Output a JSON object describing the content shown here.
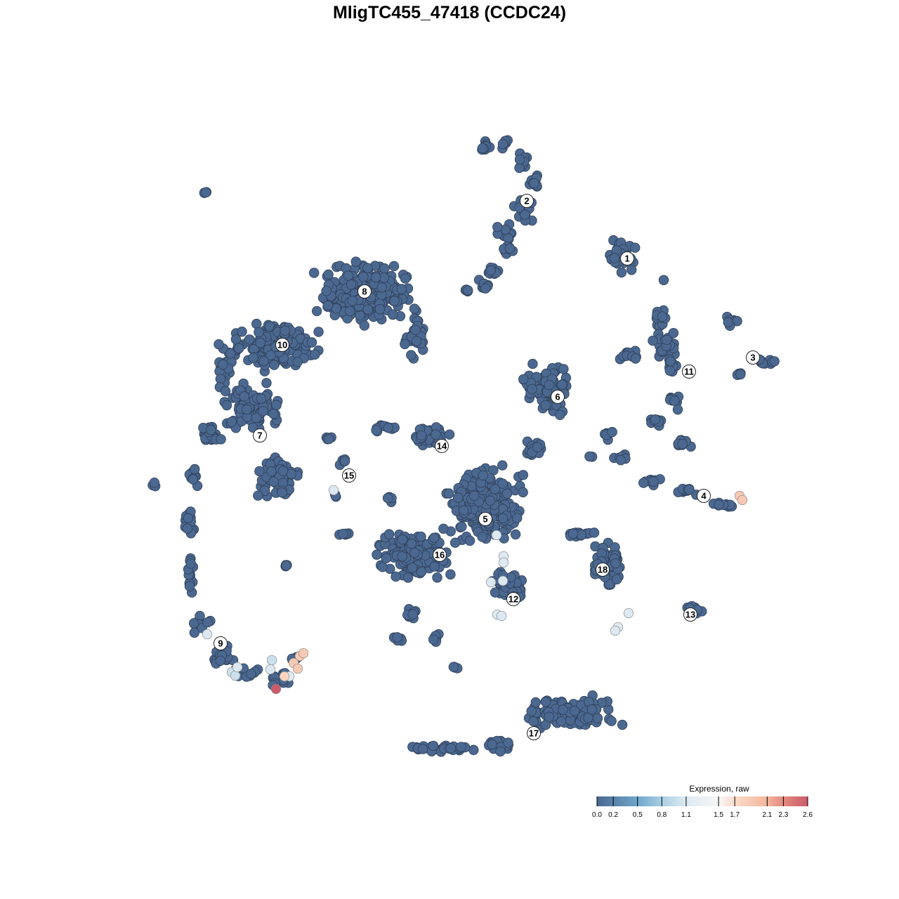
{
  "chart_data": {
    "type": "scatter",
    "title": "MligTC455_47418 (CCDC24)",
    "xlabel": "",
    "ylabel": "",
    "grid": false,
    "axes_visible": false,
    "point_color_default": "#4b6890",
    "point_stroke": "#2f4059",
    "legend": {
      "title": "Expression, raw",
      "placement": "bottom-right",
      "range": [
        0,
        2.6
      ],
      "ticks": [
        "0.0",
        "0.2",
        "0.5",
        "0.8",
        "1.1",
        "1.5",
        "1.7",
        "2.1",
        "2.3",
        "2.6"
      ],
      "color_stops": [
        {
          "value": 0.0,
          "color": "#4b6890"
        },
        {
          "value": 0.5,
          "color": "#6fa6cc"
        },
        {
          "value": 0.8,
          "color": "#a9cfe2"
        },
        {
          "value": 1.1,
          "color": "#dce9f2"
        },
        {
          "value": 1.5,
          "color": "#f7f7f7"
        },
        {
          "value": 1.7,
          "color": "#fbdccb"
        },
        {
          "value": 2.1,
          "color": "#f3b69d"
        },
        {
          "value": 2.3,
          "color": "#e38a80"
        },
        {
          "value": 2.6,
          "color": "#cc5a6a"
        }
      ]
    },
    "cluster_labels": [
      {
        "label": "1",
        "x": 25.3,
        "y": 27.2
      },
      {
        "label": "2",
        "x": 11.0,
        "y": 35.4
      },
      {
        "label": "3",
        "x": 43.2,
        "y": 13.1
      },
      {
        "label": "4",
        "x": 36.2,
        "y": -6.6
      },
      {
        "label": "5",
        "x": 5.1,
        "y": -9.9
      },
      {
        "label": "6",
        "x": 15.4,
        "y": 7.5
      },
      {
        "label": "7",
        "x": -27.0,
        "y": 2.0
      },
      {
        "label": "8",
        "x": -12.1,
        "y": 22.5
      },
      {
        "label": "9",
        "x": -32.6,
        "y": -27.6
      },
      {
        "label": "10",
        "x": -23.8,
        "y": 14.9
      },
      {
        "label": "11",
        "x": 34.1,
        "y": 11.1
      },
      {
        "label": "12",
        "x": 9.1,
        "y": -21.3
      },
      {
        "label": "13",
        "x": 34.3,
        "y": -23.5
      },
      {
        "label": "14",
        "x": -1.1,
        "y": 0.5
      },
      {
        "label": "15",
        "x": -14.3,
        "y": -3.7
      },
      {
        "label": "16",
        "x": -1.4,
        "y": -15.0
      },
      {
        "label": "17",
        "x": 12.0,
        "y": -40.4
      },
      {
        "label": "18",
        "x": 21.8,
        "y": -17.1
      }
    ],
    "point_groups_zero_expression": [
      {
        "cluster": "2",
        "blobs": [
          [
            5,
            43,
            1.5,
            1.5,
            10
          ],
          [
            8,
            43.5,
            1.5,
            1,
            8
          ],
          [
            10.5,
            41,
            1.5,
            1.5,
            10
          ],
          [
            12,
            38,
            1.5,
            2,
            12
          ],
          [
            10.5,
            34,
            2,
            2,
            14
          ],
          [
            8,
            31,
            1.5,
            1.5,
            10
          ],
          [
            8.5,
            28.5,
            1.5,
            1,
            8
          ],
          [
            6,
            25.5,
            1,
            1.5,
            8
          ],
          [
            5,
            23.5,
            1.2,
            1,
            8
          ],
          [
            2.5,
            22.5,
            1.2,
            0.4,
            5
          ]
        ]
      },
      {
        "cluster": "1",
        "blobs": [
          [
            24.5,
            27.5,
            2.5,
            2.8,
            35
          ]
        ]
      },
      {
        "cluster": "11",
        "blobs": [
          [
            30,
            19,
            1.5,
            1.5,
            10
          ],
          [
            30.5,
            15,
            2,
            2.5,
            22
          ],
          [
            31.5,
            12,
            1.5,
            1.5,
            12
          ],
          [
            25.5,
            13.5,
            2,
            1,
            12
          ],
          [
            32,
            7,
            1,
            1.5,
            10
          ],
          [
            29.5,
            4,
            2,
            1.2,
            10
          ],
          [
            33.5,
            1,
            2.5,
            0.7,
            10
          ]
        ]
      },
      {
        "cluster": "3",
        "blobs": [
          [
            40,
            18,
            1.2,
            1.5,
            8
          ],
          [
            45,
            12.5,
            2,
            0.8,
            10
          ],
          [
            41,
            10.7,
            0.8,
            0.6,
            4
          ]
        ]
      },
      {
        "cluster": "4",
        "blobs": [
          [
            22.5,
            2,
            0.8,
            1,
            6
          ],
          [
            24.5,
            -1,
            1.2,
            1.2,
            8
          ],
          [
            29,
            -4.5,
            2,
            0.8,
            8
          ],
          [
            34,
            -6,
            2,
            0.8,
            10
          ],
          [
            39,
            -7.8,
            2,
            0.7,
            10
          ]
        ]
      },
      {
        "cluster": "6",
        "blobs": [
          [
            14,
            8.5,
            4.2,
            4.2,
            90
          ],
          [
            12,
            0,
            1.8,
            1.8,
            20
          ]
        ]
      },
      {
        "cluster": "8",
        "blobs": [
          [
            -12,
            22,
            8.5,
            5.5,
            260
          ],
          [
            -5,
            16,
            1.8,
            3.5,
            30
          ]
        ]
      },
      {
        "cluster": "10",
        "blobs": [
          [
            -25,
            15,
            7.5,
            4.5,
            150
          ],
          [
            -32,
            12,
            1.8,
            4,
            25
          ]
        ]
      },
      {
        "cluster": "7",
        "blobs": [
          [
            -28,
            6,
            5.5,
            4.5,
            90
          ],
          [
            -24.5,
            -4,
            3.5,
            3.5,
            60
          ],
          [
            -34,
            2,
            2.5,
            1.5,
            25
          ]
        ]
      },
      {
        "cluster": "9",
        "blobs": [
          [
            -36.5,
            -4,
            1.2,
            2,
            10
          ],
          [
            -37,
            -10,
            0.8,
            3,
            15
          ],
          [
            -37,
            -18,
            0.8,
            4,
            15
          ],
          [
            -35.5,
            -25,
            1.8,
            1.8,
            12
          ],
          [
            -32,
            -29,
            2.5,
            1.8,
            20
          ],
          [
            -29,
            -31.5,
            2.2,
            1.3,
            12
          ],
          [
            -24.5,
            -32.5,
            1.8,
            1.8,
            15
          ],
          [
            -22,
            -29.5,
            1.3,
            0.9,
            6
          ]
        ]
      },
      {
        "cluster": "14",
        "blobs": [
          [
            -3,
            2,
            3.5,
            2,
            40
          ],
          [
            -9,
            3,
            2.8,
            0.8,
            12
          ]
        ]
      },
      {
        "cluster": "15",
        "blobs": [
          [
            -17,
            1.5,
            0.8,
            0.4,
            4
          ],
          [
            -15,
            -1.5,
            0.8,
            1.3,
            5
          ],
          [
            -16.2,
            -6.5,
            0.5,
            0.5,
            3
          ]
        ]
      },
      {
        "cluster": "5",
        "blobs": [
          [
            5,
            -8,
            6.5,
            6.5,
            250
          ]
        ]
      },
      {
        "cluster": "16",
        "blobs": [
          [
            -5,
            -15,
            6.5,
            4.5,
            150
          ]
        ]
      },
      {
        "cluster": "12",
        "blobs": [
          [
            8.5,
            -19.5,
            3.2,
            3.2,
            50
          ]
        ]
      },
      {
        "cluster": "18",
        "blobs": [
          [
            19,
            -12,
            3,
            0.8,
            15
          ],
          [
            22.5,
            -16,
            2.8,
            4.8,
            60
          ]
        ]
      },
      {
        "cluster": "13",
        "blobs": [
          [
            35,
            -23,
            2,
            0.8,
            10
          ]
        ]
      },
      {
        "cluster": "17",
        "blobs": [
          [
            17,
            -37.5,
            8.5,
            2.8,
            130
          ],
          [
            -1,
            -42.5,
            6,
            0.7,
            30
          ],
          [
            7,
            -42,
            3,
            1.3,
            20
          ]
        ]
      },
      {
        "cluster": "",
        "blobs": [
          [
            -34.7,
            36.5,
            0.5,
            0.5,
            3
          ],
          [
            -42,
            -5,
            0.5,
            0.5,
            3
          ],
          [
            -23,
            -16.5,
            0.6,
            0.5,
            4
          ],
          [
            0.8,
            -31,
            0.6,
            0.5,
            4
          ],
          [
            -7.5,
            -27,
            1,
            0.6,
            5
          ],
          [
            -2,
            -27,
            0.8,
            1.4,
            8
          ],
          [
            -5.5,
            -23,
            1,
            2,
            10
          ],
          [
            -15,
            -12,
            1.2,
            0.5,
            5
          ],
          [
            -8.5,
            -7,
            0.8,
            0.6,
            4
          ],
          [
            30.5,
            24,
            0.2,
            0.2,
            1
          ],
          [
            20,
            -1,
            0.5,
            0.5,
            2
          ]
        ]
      }
    ],
    "expressing_points": [
      [
        -34.5,
        -26.3,
        1.1
      ],
      [
        -30.2,
        -31.0,
        1.1
      ],
      [
        -31.0,
        -31.7,
        1.0
      ],
      [
        -30.5,
        -32.2,
        1.0
      ],
      [
        -25.3,
        -30.0,
        1.0
      ],
      [
        -25.5,
        -31.3,
        1.1
      ],
      [
        -22.8,
        -32.3,
        1.2
      ],
      [
        -23.5,
        -32.3,
        1.8
      ],
      [
        -22.2,
        -30.4,
        1.9
      ],
      [
        -21.3,
        -29.4,
        1.9
      ],
      [
        -20.8,
        -29.0,
        1.9
      ],
      [
        -21.6,
        -31.2,
        1.9
      ],
      [
        -24.7,
        -34.1,
        2.6
      ],
      [
        -16.5,
        -5.8,
        1.1
      ],
      [
        6.7,
        -12.2,
        1.1
      ],
      [
        7.7,
        -15.2,
        1.1
      ],
      [
        7.7,
        -16.1,
        1.1
      ],
      [
        5.9,
        -18.9,
        1.1
      ],
      [
        7.6,
        -18.7,
        1.1
      ],
      [
        6.8,
        -23.5,
        1.1
      ],
      [
        7.4,
        -23.7,
        1.1
      ],
      [
        41.3,
        -6.6,
        1.9
      ],
      [
        41.7,
        -7.2,
        1.9
      ],
      [
        24.0,
        -25.3,
        1.1
      ],
      [
        23.6,
        -25.8,
        1.1
      ],
      [
        25.5,
        -23.3,
        1.1
      ]
    ]
  }
}
